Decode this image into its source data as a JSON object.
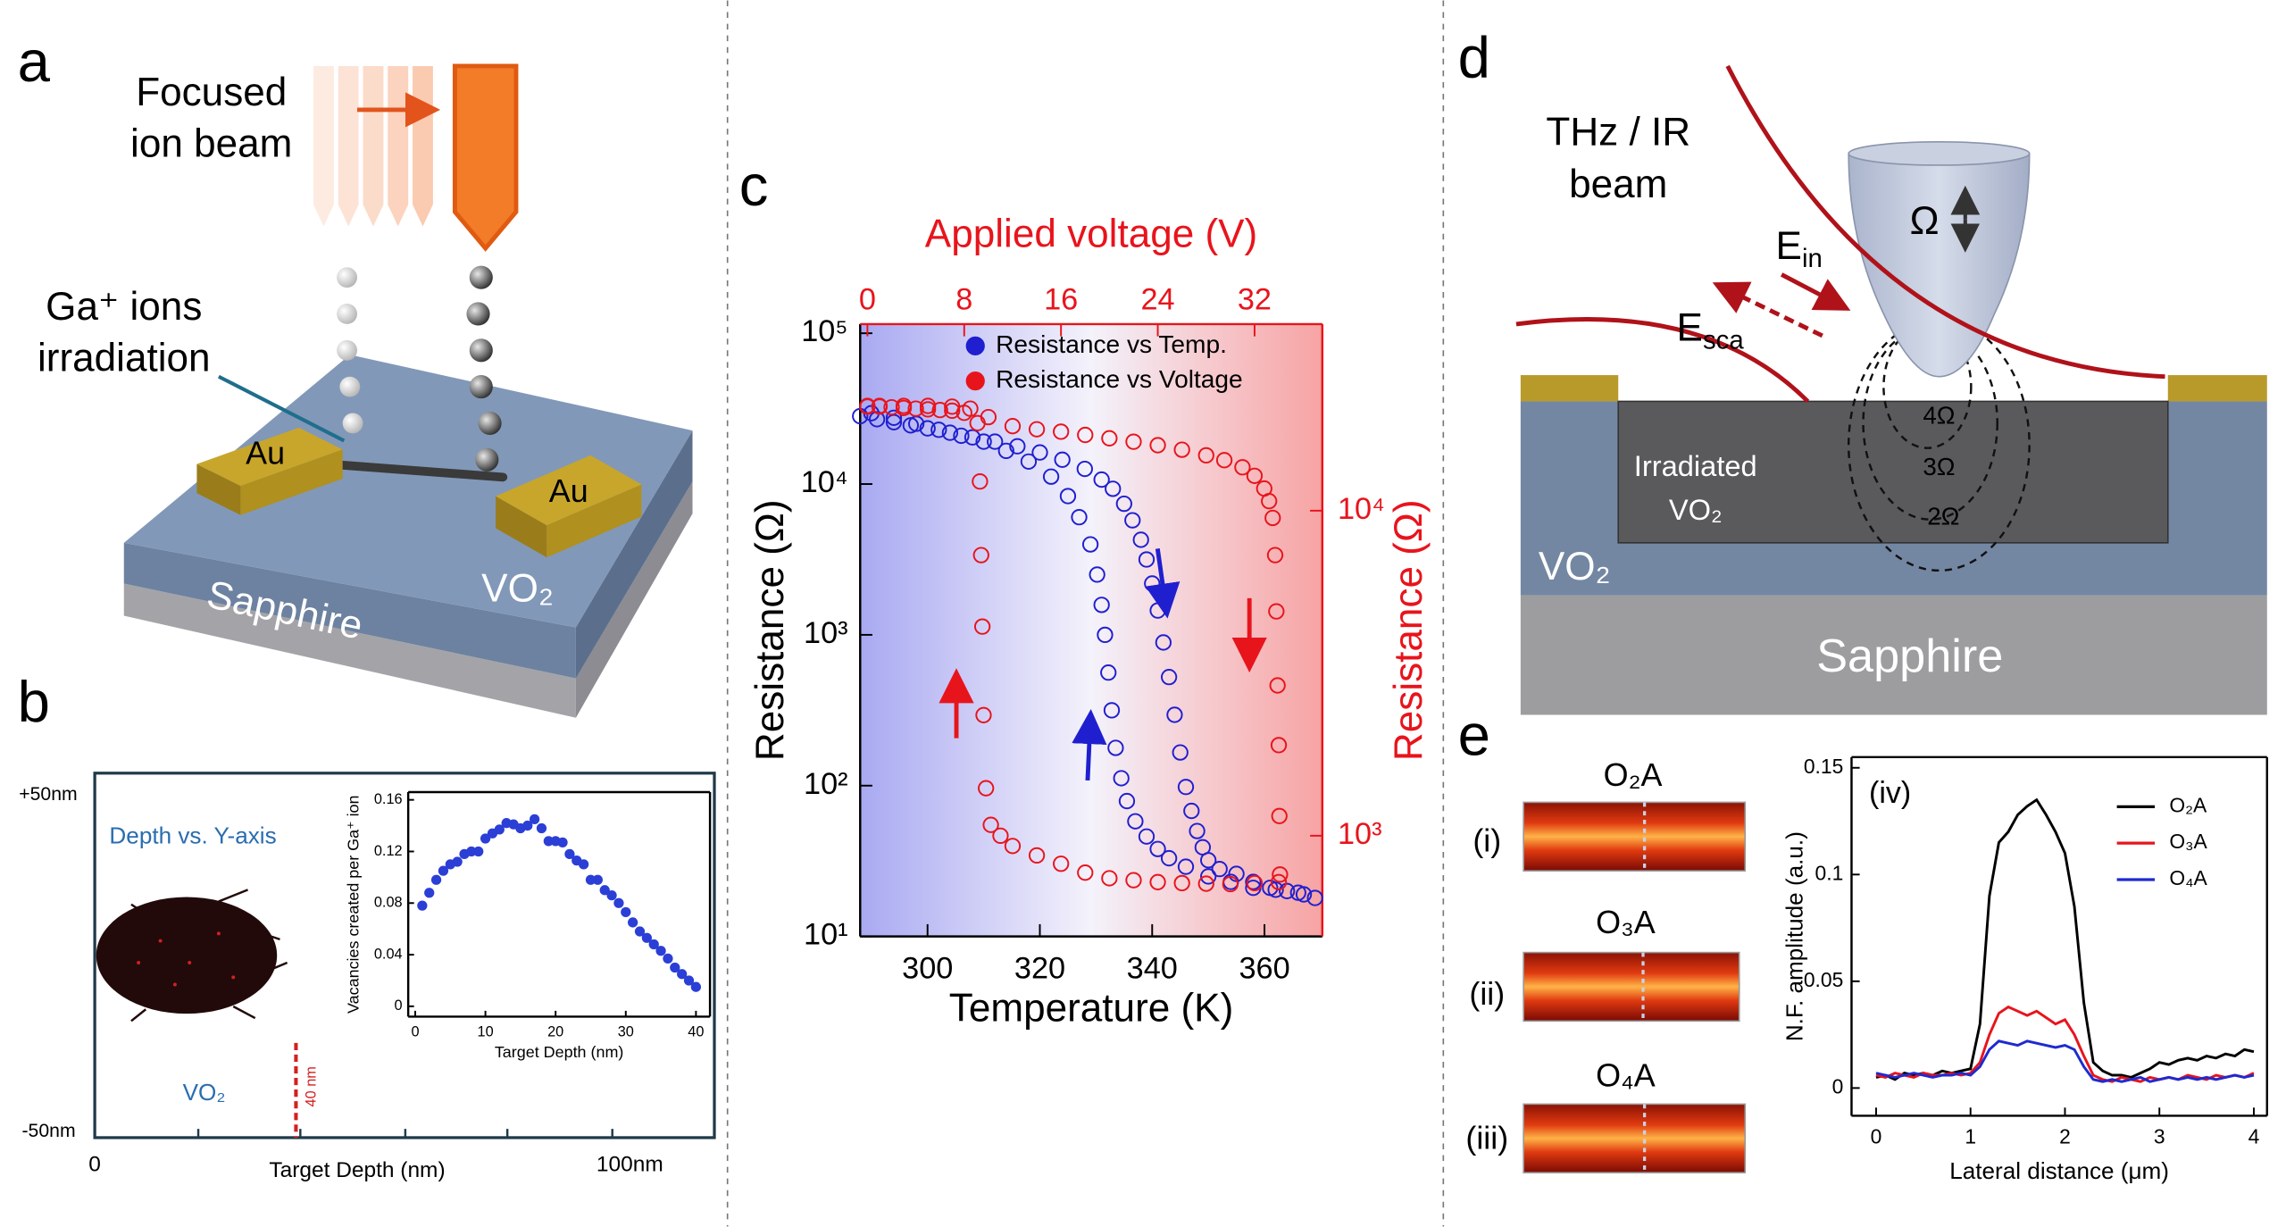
{
  "panel_labels": [
    "a",
    "b",
    "c",
    "d",
    "e"
  ],
  "panel_a": {
    "beam_label": [
      "Focused",
      "ion beam"
    ],
    "ion_label": [
      "Ga⁺ ions",
      "irradiation"
    ],
    "electrodes": [
      "Au",
      "Au"
    ],
    "substrate": "Sapphire",
    "film": "VO₂"
  },
  "panel_b": {
    "legend_text": "Depth vs. Y-axis",
    "material": "VO₂",
    "depth_marker": "40 nm",
    "y_labels": [
      "+50nm",
      "-50nm"
    ],
    "x_labels": [
      "0",
      "100nm"
    ],
    "x_label": "Target Depth (nm)"
  },
  "panel_d": {
    "beam_label": [
      "THz / IR",
      "beam"
    ],
    "tip_symbol": "Ω",
    "field_in": {
      "symbol": "E",
      "subscript": "in"
    },
    "field_sca": {
      "symbol": "E",
      "subscript": "sca"
    },
    "contours": [
      "4Ω",
      "3Ω",
      "2Ω"
    ],
    "irradiated_label": [
      "Irradiated",
      "VO₂"
    ],
    "film": "VO₂",
    "substrate": "Sapphire"
  },
  "panel_e": {
    "map_titles": [
      "O₂A",
      "O₃A",
      "O₄A"
    ],
    "map_labels": [
      "(i)",
      "(ii)",
      "(iii)"
    ]
  },
  "chart_data": [
    {
      "type": "scatter",
      "marker": "filled",
      "xlabel": "Target Depth (nm)",
      "ylabel": "Vacancies created per Ga⁺ ion",
      "color": "#2b3fd6",
      "x": [
        1,
        2,
        3,
        4,
        5,
        6,
        7,
        8,
        9,
        10,
        11,
        12,
        13,
        14,
        15,
        16,
        17,
        18,
        19,
        20,
        21,
        22,
        23,
        24,
        25,
        26,
        27,
        28,
        29,
        30,
        31,
        32,
        33,
        34,
        35,
        36,
        37,
        38,
        39,
        40
      ],
      "values": [
        0.078,
        0.088,
        0.098,
        0.105,
        0.11,
        0.112,
        0.118,
        0.12,
        0.12,
        0.13,
        0.134,
        0.137,
        0.142,
        0.141,
        0.138,
        0.14,
        0.145,
        0.138,
        0.128,
        0.128,
        0.127,
        0.118,
        0.113,
        0.11,
        0.098,
        0.098,
        0.09,
        0.086,
        0.08,
        0.073,
        0.065,
        0.058,
        0.053,
        0.048,
        0.043,
        0.037,
        0.03,
        0.025,
        0.02,
        0.015
      ],
      "xlim": [
        -1,
        42
      ],
      "xticks": [
        0,
        10,
        20,
        30,
        40
      ],
      "ylim": [
        -0.008,
        0.166
      ],
      "yticks": [
        0,
        0.04,
        0.08,
        0.12,
        0.16
      ]
    },
    {
      "type": "scatter",
      "marker": "open",
      "xlabel": "Temperature (K)",
      "x2label": "Applied voltage (V)",
      "ylabel": "Resistance (Ω)",
      "y2label": "Resistance (Ω)",
      "xlim": [
        288,
        370.3
      ],
      "xticks": [
        300,
        320,
        340,
        360
      ],
      "x2lim": [
        -0.6,
        37.6
      ],
      "x2ticks": [
        0,
        8,
        16,
        24,
        32
      ],
      "ylim": [
        10,
        115000
      ],
      "yscale": "log",
      "yticks": [
        {
          "value": 10,
          "label": "10¹"
        },
        {
          "value": 100,
          "label": "10²"
        },
        {
          "value": 1000,
          "label": "10³"
        },
        {
          "value": 10000,
          "label": "10⁴"
        },
        {
          "value": 100000,
          "label": "10⁵"
        }
      ],
      "y2lim": [
        490,
        37500
      ],
      "y2scale": "log",
      "y2ticks": [
        {
          "value": 1000,
          "label": "10³"
        },
        {
          "value": 10000,
          "label": "10⁴"
        }
      ],
      "legend": "upper right",
      "series": [
        {
          "name": "Resistance vs Temp.",
          "color": "#1f1fd0",
          "x": [
            288,
            291,
            294,
            297,
            300,
            304,
            308,
            312,
            316,
            320,
            324,
            328,
            331,
            333,
            335,
            336.5,
            338,
            339,
            340,
            341,
            342,
            343,
            344,
            345,
            346,
            347,
            348,
            349,
            350,
            352,
            355,
            358,
            361,
            364,
            367,
            369,
            366,
            362,
            358,
            354,
            350,
            346,
            343,
            341,
            339,
            337,
            335.5,
            334.5,
            333.5,
            332.8,
            332.2,
            331.6,
            331,
            330.2,
            329,
            327,
            325,
            322,
            318,
            314,
            310,
            306,
            302,
            298,
            294,
            290
          ],
          "values": [
            28200,
            26900,
            25700,
            24500,
            23400,
            21900,
            20400,
            19100,
            17800,
            16200,
            14500,
            12600,
            10700,
            9300,
            7400,
            5750,
            4270,
            3160,
            2190,
            1450,
            890,
            525,
            295,
            166,
            98,
            68,
            50,
            39,
            32,
            28,
            26,
            23,
            21,
            20,
            19,
            18,
            19.5,
            20.4,
            21,
            23,
            25,
            29,
            33,
            38,
            46,
            58,
            79,
            112,
            178,
            316,
            562,
            1000,
            1580,
            2510,
            3980,
            6030,
            8320,
            11200,
            14100,
            16600,
            19100,
            20900,
            22900,
            25100,
            27500,
            29500
          ]
        },
        {
          "name": "Resistance vs Voltage",
          "color": "#e8141c",
          "axis": "y2",
          "xaxis": "x2",
          "x": [
            0,
            1,
            2,
            3,
            4,
            5,
            6,
            7,
            8,
            10,
            12,
            14,
            16,
            18,
            20,
            22,
            24,
            26,
            28,
            29.5,
            31,
            32,
            32.8,
            33.2,
            33.5,
            33.7,
            33.8,
            33.9,
            34,
            34.05,
            34.1,
            34,
            32,
            30,
            28,
            26,
            24,
            22,
            20,
            18,
            16,
            14,
            12,
            11,
            10.2,
            9.8,
            9.6,
            9.5,
            9.4,
            9.3,
            9.1,
            8.5,
            7,
            5,
            3,
            1,
            0
          ],
          "values": [
            20900,
            20900,
            20800,
            20700,
            20600,
            20500,
            20400,
            20300,
            20000,
            19400,
            18200,
            17800,
            17500,
            17100,
            16700,
            16300,
            15900,
            15400,
            14800,
            14300,
            13600,
            12800,
            11700,
            10700,
            9500,
            7300,
            4900,
            2900,
            1900,
            1150,
            760,
            720,
            715,
            710,
            712,
            715,
            720,
            730,
            740,
            770,
            820,
            870,
            930,
            1000,
            1080,
            1400,
            2350,
            4400,
            7300,
            12300,
            18600,
            20600,
            20900,
            21000,
            21000,
            21000,
            21000
          ]
        }
      ]
    },
    {
      "type": "line",
      "annotation": "(iv)",
      "xlabel": "Lateral distance (μm)",
      "ylabel": "N.F. amplitude (a.u.)",
      "xlim": [
        -0.26,
        4.14
      ],
      "xticks": [
        0,
        1,
        2,
        3,
        4
      ],
      "ylim": [
        -0.013,
        0.155
      ],
      "yticks": [
        0,
        0.05,
        0.1,
        0.15
      ],
      "legend": "upper right",
      "x": [
        0,
        0.1,
        0.2,
        0.3,
        0.4,
        0.5,
        0.6,
        0.7,
        0.8,
        0.9,
        1,
        1.1,
        1.2,
        1.3,
        1.4,
        1.5,
        1.6,
        1.7,
        1.8,
        1.9,
        2,
        2.1,
        2.2,
        2.3,
        2.4,
        2.5,
        2.6,
        2.7,
        2.8,
        2.9,
        3,
        3.1,
        3.2,
        3.3,
        3.4,
        3.5,
        3.6,
        3.7,
        3.8,
        3.9,
        4
      ],
      "series": [
        {
          "name": "O₂A",
          "color": "#000000",
          "values": [
            0.005,
            0.006,
            0.004,
            0.007,
            0.006,
            0.007,
            0.006,
            0.008,
            0.007,
            0.008,
            0.009,
            0.03,
            0.09,
            0.115,
            0.12,
            0.128,
            0.132,
            0.135,
            0.128,
            0.12,
            0.11,
            0.085,
            0.04,
            0.012,
            0.008,
            0.006,
            0.006,
            0.005,
            0.007,
            0.009,
            0.012,
            0.011,
            0.013,
            0.014,
            0.013,
            0.015,
            0.014,
            0.016,
            0.015,
            0.018,
            0.017
          ]
        },
        {
          "name": "O₃A",
          "color": "#e8141c",
          "values": [
            0.006,
            0.005,
            0.007,
            0.006,
            0.005,
            0.007,
            0.006,
            0.006,
            0.007,
            0.006,
            0.007,
            0.012,
            0.025,
            0.035,
            0.038,
            0.036,
            0.034,
            0.036,
            0.033,
            0.03,
            0.032,
            0.025,
            0.015,
            0.006,
            0.004,
            0.003,
            0.005,
            0.004,
            0.003,
            0.005,
            0.004,
            0.005,
            0.004,
            0.006,
            0.005,
            0.004,
            0.006,
            0.005,
            0.006,
            0.005,
            0.007
          ]
        },
        {
          "name": "O₄A",
          "color": "#1f2ad0",
          "values": [
            0.007,
            0.006,
            0.005,
            0.006,
            0.007,
            0.006,
            0.005,
            0.006,
            0.006,
            0.007,
            0.006,
            0.01,
            0.018,
            0.022,
            0.021,
            0.02,
            0.022,
            0.021,
            0.02,
            0.019,
            0.02,
            0.018,
            0.01,
            0.004,
            0.003,
            0.004,
            0.003,
            0.004,
            0.005,
            0.003,
            0.004,
            0.005,
            0.004,
            0.005,
            0.004,
            0.005,
            0.004,
            0.005,
            0.006,
            0.005,
            0.006
          ]
        }
      ]
    }
  ]
}
